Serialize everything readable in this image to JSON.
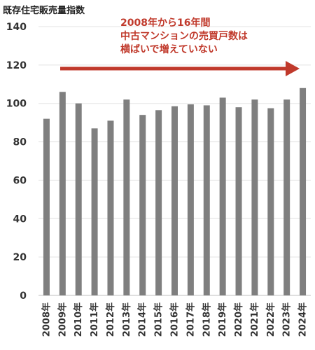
{
  "chart_data": {
    "type": "bar",
    "title": "既存住宅販売量指数",
    "categories": [
      "2008年",
      "2009年",
      "2010年",
      "2011年",
      "2012年",
      "2013年",
      "2014年",
      "2015年",
      "2016年",
      "2017年",
      "2018年",
      "2019年",
      "2020年",
      "2021年",
      "2022年",
      "2023年",
      "2024年"
    ],
    "values": [
      92,
      106,
      100,
      87,
      91,
      102,
      94,
      96.5,
      98.5,
      99.5,
      99,
      103,
      98,
      102,
      97.5,
      102,
      108
    ],
    "ylim": [
      0,
      140
    ],
    "yticks": [
      0,
      20,
      40,
      60,
      80,
      100,
      120,
      140
    ],
    "grid": true,
    "bar_color": "#7f7f7f",
    "annotation": {
      "lines": [
        "2008年から16年間",
        "中古マンションの売買戸数は",
        "横ばいで増えていない"
      ],
      "color": "#c0392b"
    },
    "arrow_color": "#c0392b"
  }
}
